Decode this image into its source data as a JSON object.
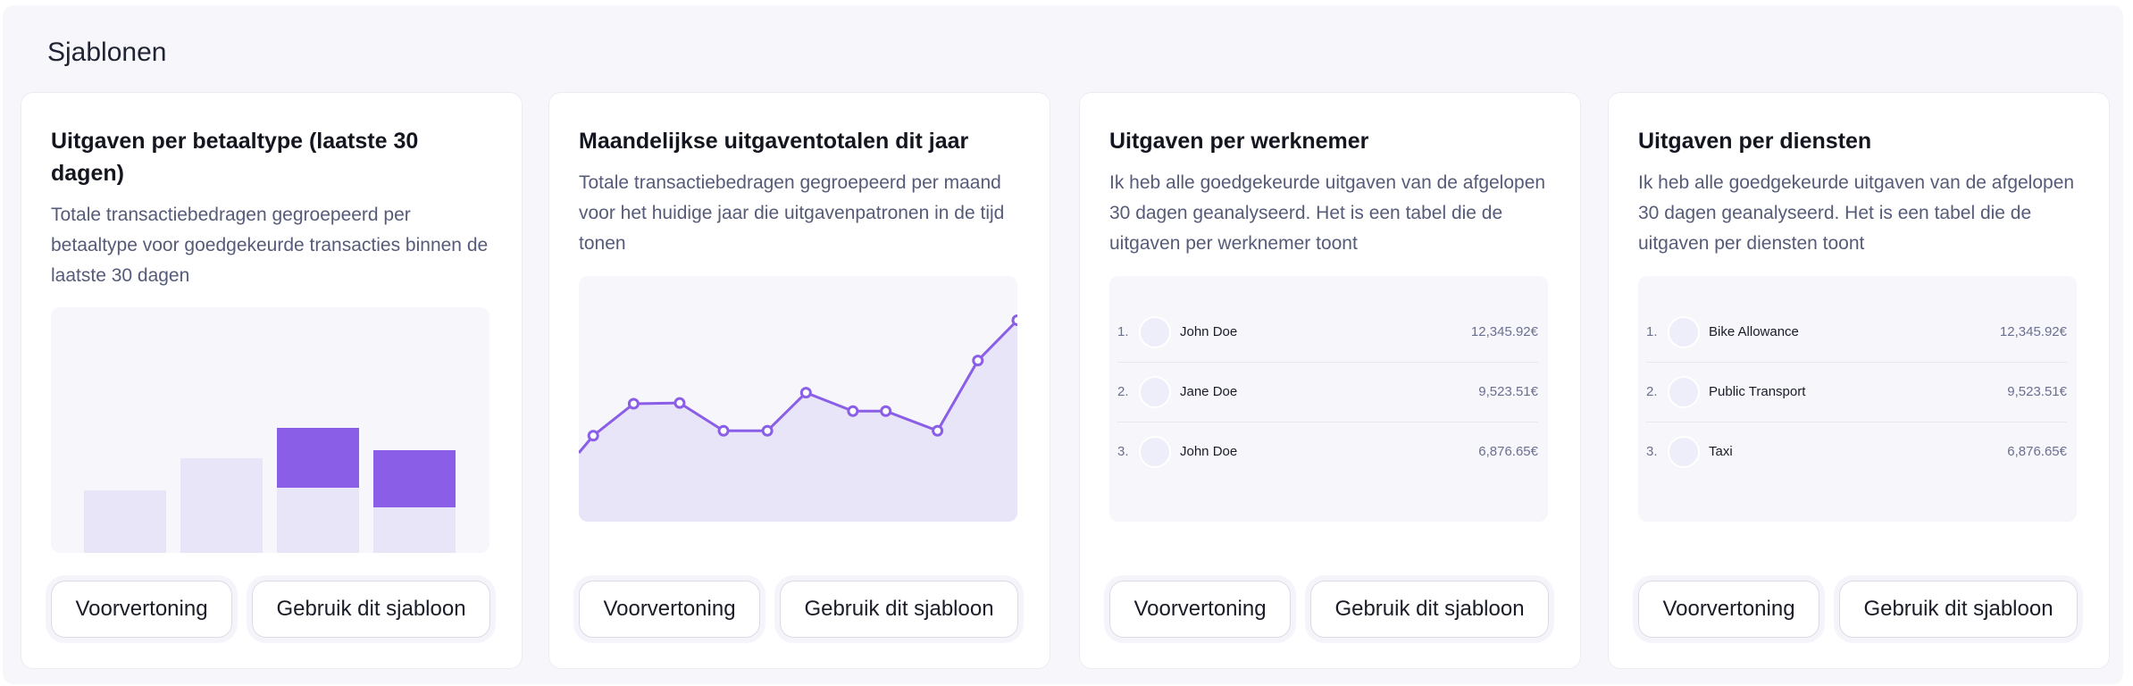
{
  "section_title": "Sjablonen",
  "colors": {
    "accent": "#8a5ee6",
    "accent_light": "#e9e5f9",
    "panel": "#f7f7fb"
  },
  "buttons": {
    "preview": "Voorvertoning",
    "use": "Gebruik dit sjabloon"
  },
  "cards": [
    {
      "title": "Uitgaven per betaaltype (laatste 30 dagen)",
      "description": "Totale transactiebedragen gegroepeerd per betaaltype voor goedgekeurde transacties binnen de laatste 30 dagen"
    },
    {
      "title": "Maandelijkse uitgaventotalen dit jaar",
      "description": "Totale transactiebedragen gegroepeerd per maand voor het huidige jaar die uitgavenpatronen in de tijd tonen"
    },
    {
      "title": "Uitgaven per werknemer",
      "description": "Ik heb alle goedgekeurde uitgaven van de afgelopen 30 dagen geanalyseerd. Het is een tabel die de uitgaven per werknemer toont",
      "rows": [
        {
          "rank": "1.",
          "name": "John Doe",
          "amount": "12,345.92€"
        },
        {
          "rank": "2.",
          "name": "Jane Doe",
          "amount": "9,523.51€"
        },
        {
          "rank": "3.",
          "name": "John Doe",
          "amount": "6,876.65€"
        }
      ]
    },
    {
      "title": "Uitgaven per diensten",
      "description": "Ik heb alle goedgekeurde uitgaven van de afgelopen 30 dagen geanalyseerd. Het is een tabel die de uitgaven per diensten toont",
      "rows": [
        {
          "rank": "1.",
          "name": "Bike Allowance",
          "amount": "12,345.92€"
        },
        {
          "rank": "2.",
          "name": "Public Transport",
          "amount": "9,523.51€"
        },
        {
          "rank": "3.",
          "name": "Taxi",
          "amount": "6,876.65€"
        }
      ]
    }
  ],
  "chart_data": [
    {
      "type": "bar",
      "stacked": true,
      "ylim": [
        0,
        100
      ],
      "grid": false,
      "categories": [
        "1",
        "2",
        "3",
        "4"
      ],
      "series": [
        {
          "values": [
            25.5,
            38.7,
            26.6,
            18.5
          ],
          "color": "#e9e5f9"
        },
        {
          "values": [
            0,
            0,
            24.4,
            23.3
          ],
          "color": "#8a5ee6"
        }
      ]
    },
    {
      "type": "area",
      "ylim": [
        0,
        100
      ],
      "xlim": [
        0,
        100
      ],
      "grid": false,
      "x": [
        0,
        3.3,
        12.5,
        23,
        33,
        43,
        51.8,
        62.5,
        70,
        81.8,
        91,
        100
      ],
      "y": [
        28,
        35,
        48,
        48.3,
        37,
        37,
        52.5,
        45,
        45,
        37,
        65.6,
        82
      ],
      "markers": [
        false,
        true,
        true,
        true,
        true,
        true,
        true,
        true,
        true,
        true,
        true,
        true
      ]
    }
  ]
}
